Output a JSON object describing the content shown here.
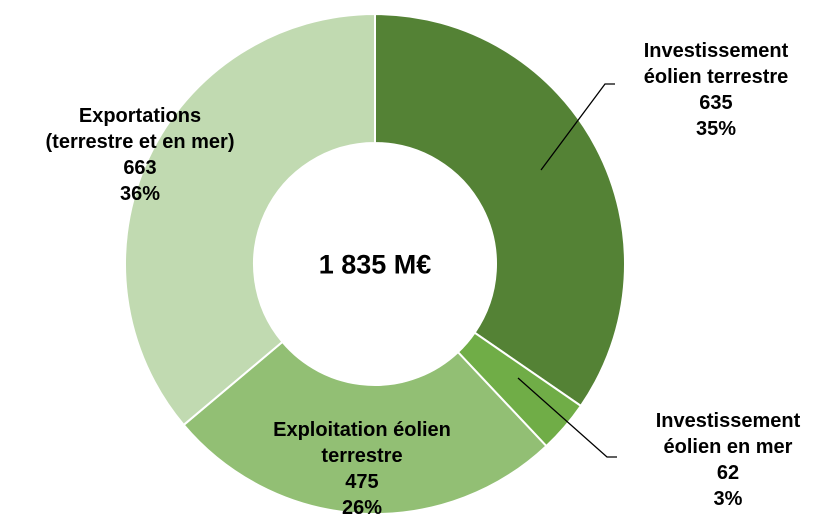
{
  "chart_data": {
    "type": "pie",
    "donut": true,
    "center_label": "1 835 M€",
    "categories": [
      "Investissement\néolien terrestre",
      "Investissement\néolien en mer",
      "Exploitation éolien\nterrestre",
      "Exportations\n(terrestre et en mer)"
    ],
    "values": [
      635,
      62,
      475,
      663
    ],
    "percent_labels": [
      "35%",
      "3%",
      "26%",
      "36%"
    ],
    "colors": [
      "#548235",
      "#70ad47",
      "#92bf74",
      "#c1dab1"
    ]
  }
}
